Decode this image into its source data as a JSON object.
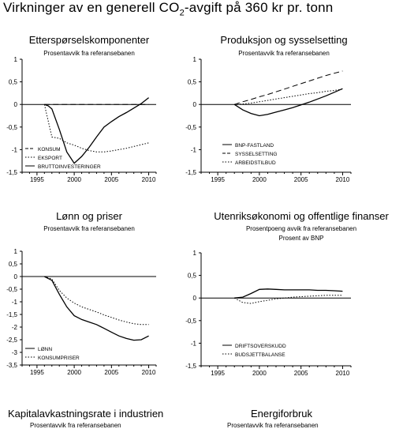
{
  "figure_title": {
    "main": "Virkninger av en generell CO",
    "sub": "2",
    "rest": "-avgift på 360 kr pr. tonn"
  },
  "chart_data": [
    {
      "type": "line",
      "title": "Etterspørselskomponenter",
      "subtitle": "Prosentavvik fra referansebanen",
      "ylim": [
        -1.5,
        1
      ],
      "yticks": [
        "1",
        "0,5",
        "0",
        "-0,5",
        "-1",
        "-1,5"
      ],
      "ytick_values": [
        1,
        0.5,
        0,
        -0.5,
        -1,
        -1.5
      ],
      "xlim": [
        1993,
        2011
      ],
      "xticks": [
        1995,
        2000,
        2005,
        2010
      ],
      "legend_position": "bottom-left",
      "series": [
        {
          "name": "KONSUM",
          "style": "dashed",
          "x": [
            1996,
            2010
          ],
          "y": [
            0,
            0
          ]
        },
        {
          "name": "EKSPORT",
          "style": "dotted",
          "x": [
            1996,
            1997,
            1998,
            1999,
            2000,
            2001,
            2002,
            2003,
            2004,
            2005,
            2006,
            2007,
            2008,
            2009,
            2010
          ],
          "y": [
            0,
            -0.72,
            -0.75,
            -0.85,
            -0.9,
            -0.97,
            -1.02,
            -1.05,
            -1.05,
            -1.03,
            -1.0,
            -0.97,
            -0.93,
            -0.89,
            -0.85
          ]
        },
        {
          "name": "BRUTTOINVESTERINGER",
          "style": "solid",
          "x": [
            1996,
            1996.5,
            1997,
            1998,
            1999,
            2000,
            2001,
            2002,
            2003,
            2004,
            2005,
            2006,
            2007,
            2008,
            2009,
            2010
          ],
          "y": [
            0,
            -0.03,
            -0.1,
            -0.55,
            -1.05,
            -1.3,
            -1.15,
            -0.95,
            -0.72,
            -0.5,
            -0.38,
            -0.27,
            -0.18,
            -0.08,
            0.02,
            0.15
          ]
        }
      ]
    },
    {
      "type": "line",
      "title": "Produksjon og sysselsetting",
      "subtitle": "Prosentavvik fra referansebanen",
      "ylim": [
        -1.5,
        1
      ],
      "yticks": [
        "1",
        "0,5",
        "0",
        "-0,5",
        "-1",
        "-1,5"
      ],
      "ytick_values": [
        1,
        0.5,
        0,
        -0.5,
        -1,
        -1.5
      ],
      "xlim": [
        1993,
        2011
      ],
      "xticks": [
        1995,
        2000,
        2005,
        2010
      ],
      "legend_position": "bottom-left",
      "series": [
        {
          "name": "BNP-FASTLAND",
          "style": "solid",
          "x": [
            1997,
            1998,
            1999,
            2000,
            2001,
            2002,
            2003,
            2004,
            2005,
            2006,
            2007,
            2008,
            2009,
            2010
          ],
          "y": [
            0,
            -0.12,
            -0.2,
            -0.25,
            -0.22,
            -0.17,
            -0.12,
            -0.07,
            -0.01,
            0.05,
            0.12,
            0.19,
            0.27,
            0.35
          ]
        },
        {
          "name": "SYSSELSETTING",
          "style": "dashed",
          "x": [
            1997,
            1998,
            1999,
            2000,
            2001,
            2002,
            2003,
            2004,
            2005,
            2006,
            2007,
            2008,
            2009,
            2010
          ],
          "y": [
            0,
            0.06,
            0.11,
            0.17,
            0.22,
            0.28,
            0.34,
            0.4,
            0.46,
            0.52,
            0.58,
            0.64,
            0.69,
            0.74
          ]
        },
        {
          "name": "ARBEIDSTILBUD",
          "style": "dotted",
          "x": [
            1997,
            1998,
            1999,
            2000,
            2001,
            2002,
            2003,
            2004,
            2005,
            2006,
            2007,
            2008,
            2009,
            2010
          ],
          "y": [
            0,
            0.01,
            0.03,
            0.06,
            0.09,
            0.12,
            0.15,
            0.18,
            0.21,
            0.24,
            0.26,
            0.29,
            0.31,
            0.34
          ]
        }
      ]
    },
    {
      "type": "line",
      "title": "Lønn og priser",
      "subtitle": "Prosentavvik fra referansebanen",
      "ylim": [
        -3.5,
        1
      ],
      "yticks": [
        "1",
        "0,5",
        "0",
        "-0,5",
        "-1",
        "-1,5",
        "-2",
        "-2,5",
        "-3",
        "-3,5"
      ],
      "ytick_values": [
        1,
        0.5,
        0,
        -0.5,
        -1,
        -1.5,
        -2,
        -2.5,
        -3,
        -3.5
      ],
      "xlim": [
        1993,
        2011
      ],
      "xticks": [
        1995,
        2000,
        2005,
        2010
      ],
      "legend_position": "bottom-left",
      "series": [
        {
          "name": "LØNN",
          "style": "solid",
          "x": [
            1996,
            1997,
            1998,
            1999,
            2000,
            2001,
            2002,
            2003,
            2004,
            2005,
            2006,
            2007,
            2008,
            2009,
            2010
          ],
          "y": [
            0,
            -0.15,
            -0.7,
            -1.2,
            -1.55,
            -1.7,
            -1.8,
            -1.9,
            -2.05,
            -2.2,
            -2.35,
            -2.45,
            -2.52,
            -2.5,
            -2.35
          ]
        },
        {
          "name": "KONSUMPRISER",
          "style": "dotted",
          "x": [
            1996,
            1997,
            1998,
            1999,
            2000,
            2001,
            2002,
            2003,
            2004,
            2005,
            2006,
            2007,
            2008,
            2009,
            2010
          ],
          "y": [
            0,
            -0.1,
            -0.55,
            -0.85,
            -1.05,
            -1.2,
            -1.3,
            -1.4,
            -1.52,
            -1.62,
            -1.72,
            -1.8,
            -1.87,
            -1.9,
            -1.9
          ]
        }
      ]
    },
    {
      "type": "line",
      "title": "Utenriksøkonomi og offentlige finanser",
      "subtitle": "Prosentpoeng avvik fra referansebanen",
      "subtitle2": "Prosent av BNP",
      "ylim": [
        -1.5,
        1
      ],
      "yticks": [
        "1",
        "0,5",
        "0",
        "-0,5",
        "-1",
        "-1,5"
      ],
      "ytick_values": [
        1,
        0.5,
        0,
        -0.5,
        -1,
        -1.5
      ],
      "xlim": [
        1993,
        2011
      ],
      "xticks": [
        1995,
        2000,
        2005,
        2010
      ],
      "legend_position": "bottom-left",
      "series": [
        {
          "name": "DRIFTSOVERSKUDD",
          "style": "solid",
          "x": [
            1997,
            1998,
            1999,
            2000,
            2001,
            2002,
            2003,
            2004,
            2005,
            2006,
            2007,
            2008,
            2009,
            2010
          ],
          "y": [
            0,
            0.02,
            0.1,
            0.19,
            0.2,
            0.19,
            0.18,
            0.18,
            0.18,
            0.18,
            0.17,
            0.17,
            0.16,
            0.15
          ]
        },
        {
          "name": "BUDSJETTBALANSE",
          "style": "dotted",
          "x": [
            1997,
            1998,
            1999,
            2000,
            2001,
            2002,
            2003,
            2004,
            2005,
            2006,
            2007,
            2008,
            2009,
            2010
          ],
          "y": [
            0,
            -0.1,
            -0.12,
            -0.08,
            -0.05,
            -0.02,
            0.0,
            0.02,
            0.03,
            0.04,
            0.05,
            0.06,
            0.06,
            0.06
          ]
        }
      ]
    }
  ],
  "bottom_titles": [
    "Kapitalavkastningsrate i industrien",
    "Energiforbruk"
  ],
  "bottom_subtitles": [
    "Prosentavvik fra referansebanen",
    "Prosentavvik fra referansebanen"
  ]
}
